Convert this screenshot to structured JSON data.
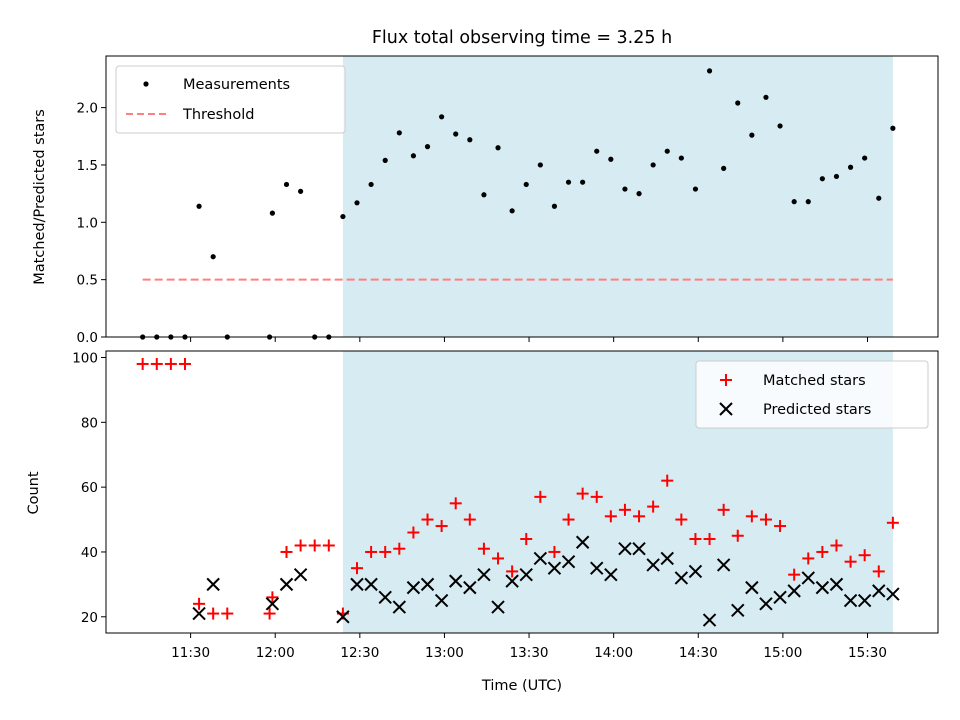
{
  "chart_data": {
    "title": "Flux total observing time = 3.25 h",
    "xlabel": "Time (UTC)",
    "x_unit": "minutes since 00:00 UTC",
    "xlim": [
      "11:00",
      "15:55"
    ],
    "xticks": [
      {
        "label": "11:30",
        "value": "11:30"
      },
      {
        "label": "12:00",
        "value": "12:00"
      },
      {
        "label": "12:30",
        "value": "12:30"
      },
      {
        "label": "13:00",
        "value": "13:00"
      },
      {
        "label": "13:30",
        "value": "13:30"
      },
      {
        "label": "14:00",
        "value": "14:00"
      },
      {
        "label": "14:30",
        "value": "14:30"
      },
      {
        "label": "15:00",
        "value": "15:00"
      },
      {
        "label": "15:30",
        "value": "15:30"
      }
    ],
    "observing_window": {
      "start": "12:24",
      "end": "15:39",
      "color": "#add8e6"
    },
    "panels": [
      {
        "type": "scatter",
        "ylabel": "Matched/Predicted stars",
        "ylim": [
          0,
          2.45
        ],
        "yticks": [
          "0.0",
          "0.5",
          "1.0",
          "1.5",
          "2.0"
        ],
        "ytick_values": [
          0,
          0.5,
          1.0,
          1.5,
          2.0
        ],
        "legend_position": "upper-left",
        "threshold": {
          "name": "Threshold",
          "value": 0.5,
          "x_start": "11:13",
          "x_end": "15:39",
          "color": "#ff7f7f"
        },
        "series": [
          {
            "name": "Measurements",
            "color": "#000000",
            "marker": "dot",
            "x": [
              "11:13",
              "11:18",
              "11:23",
              "11:28",
              "11:33",
              "11:38",
              "11:43",
              "11:58",
              "11:59",
              "12:04",
              "12:09",
              "12:14",
              "12:19",
              "12:24",
              "12:29",
              "12:34",
              "12:39",
              "12:44",
              "12:49",
              "12:54",
              "12:59",
              "13:04",
              "13:09",
              "13:14",
              "13:19",
              "13:24",
              "13:29",
              "13:34",
              "13:39",
              "13:44",
              "13:49",
              "13:54",
              "13:59",
              "14:04",
              "14:09",
              "14:14",
              "14:19",
              "14:24",
              "14:29",
              "14:34",
              "14:39",
              "14:44",
              "14:49",
              "14:54",
              "14:59",
              "15:04",
              "15:09",
              "15:14",
              "15:19",
              "15:24",
              "15:29",
              "15:34",
              "15:39"
            ],
            "y": [
              0,
              0,
              0,
              0,
              1.14,
              0.7,
              0,
              0,
              1.08,
              1.33,
              1.27,
              0,
              0,
              1.05,
              1.17,
              1.33,
              1.54,
              1.78,
              1.58,
              1.66,
              1.92,
              1.77,
              1.72,
              1.24,
              1.65,
              1.1,
              1.33,
              1.5,
              1.14,
              1.35,
              1.35,
              1.62,
              1.55,
              1.29,
              1.25,
              1.5,
              1.62,
              1.56,
              1.29,
              2.32,
              1.47,
              2.04,
              1.76,
              2.09,
              1.84,
              1.18,
              1.18,
              1.38,
              1.4,
              1.48,
              1.56,
              1.21,
              1.82
            ]
          }
        ]
      },
      {
        "type": "scatter",
        "ylabel": "Count",
        "ylim": [
          15,
          102
        ],
        "yticks": [
          "20",
          "40",
          "60",
          "80",
          "100"
        ],
        "ytick_values": [
          20,
          40,
          60,
          80,
          100
        ],
        "legend_position": "upper-right",
        "series": [
          {
            "name": "Matched stars",
            "color": "#ff0000",
            "marker": "plus",
            "x": [
              "11:13",
              "11:18",
              "11:23",
              "11:28",
              "11:33",
              "11:38",
              "11:43",
              "11:58",
              "11:59",
              "12:04",
              "12:09",
              "12:14",
              "12:19",
              "12:24",
              "12:29",
              "12:34",
              "12:39",
              "12:44",
              "12:49",
              "12:54",
              "12:59",
              "13:04",
              "13:09",
              "13:14",
              "13:19",
              "13:24",
              "13:29",
              "13:34",
              "13:39",
              "13:44",
              "13:49",
              "13:54",
              "13:59",
              "14:04",
              "14:09",
              "14:14",
              "14:19",
              "14:24",
              "14:29",
              "14:34",
              "14:39",
              "14:44",
              "14:49",
              "14:54",
              "14:59",
              "15:04",
              "15:09",
              "15:14",
              "15:19",
              "15:24",
              "15:29",
              "15:34",
              "15:39"
            ],
            "y": [
              98,
              98,
              98,
              98,
              24,
              21,
              21,
              21,
              26,
              40,
              42,
              42,
              42,
              21,
              35,
              40,
              40,
              41,
              46,
              50,
              48,
              55,
              50,
              41,
              38,
              34,
              44,
              57,
              40,
              50,
              58,
              57,
              51,
              53,
              51,
              54,
              62,
              50,
              44,
              44,
              53,
              45,
              51,
              50,
              48,
              33,
              38,
              40,
              42,
              37,
              39,
              34,
              49
            ]
          },
          {
            "name": "Predicted stars",
            "color": "#000000",
            "marker": "x",
            "x": [
              "11:33",
              "11:38",
              "11:59",
              "12:04",
              "12:09",
              "12:24",
              "12:29",
              "12:34",
              "12:39",
              "12:44",
              "12:49",
              "12:54",
              "12:59",
              "13:04",
              "13:09",
              "13:14",
              "13:19",
              "13:24",
              "13:29",
              "13:34",
              "13:39",
              "13:44",
              "13:49",
              "13:54",
              "13:59",
              "14:04",
              "14:09",
              "14:14",
              "14:19",
              "14:24",
              "14:29",
              "14:34",
              "14:39",
              "14:44",
              "14:49",
              "14:54",
              "14:59",
              "15:04",
              "15:09",
              "15:14",
              "15:19",
              "15:24",
              "15:29",
              "15:34",
              "15:39"
            ],
            "y": [
              21,
              30,
              24,
              30,
              33,
              20,
              30,
              30,
              26,
              23,
              29,
              30,
              25,
              31,
              29,
              33,
              23,
              31,
              33,
              38,
              35,
              37,
              43,
              35,
              33,
              41,
              41,
              36,
              38,
              32,
              34,
              19,
              36,
              22,
              29,
              24,
              26,
              28,
              32,
              29,
              30,
              25,
              25,
              28,
              27
            ]
          }
        ]
      }
    ]
  }
}
